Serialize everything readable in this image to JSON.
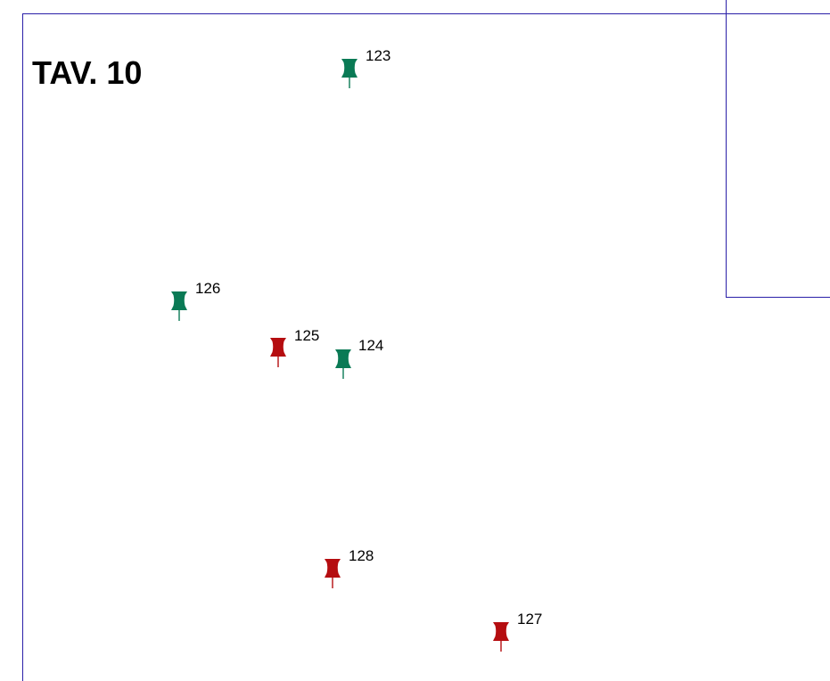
{
  "map": {
    "title": "TAV. 10",
    "colors": {
      "frame": "#2a1fa8",
      "green_marker": "#0a7a55",
      "red_marker": "#b50d10"
    },
    "markers": [
      {
        "id": "123",
        "label": "123",
        "color": "green",
        "icon": "green-pushpin-icon"
      },
      {
        "id": "126",
        "label": "126",
        "color": "green",
        "icon": "green-pushpin-icon"
      },
      {
        "id": "125",
        "label": "125",
        "color": "red",
        "icon": "red-pushpin-icon"
      },
      {
        "id": "124",
        "label": "124",
        "color": "green",
        "icon": "green-pushpin-icon"
      },
      {
        "id": "128",
        "label": "128",
        "color": "red",
        "icon": "red-pushpin-icon"
      },
      {
        "id": "127",
        "label": "127",
        "color": "red",
        "icon": "red-pushpin-icon"
      }
    ]
  }
}
